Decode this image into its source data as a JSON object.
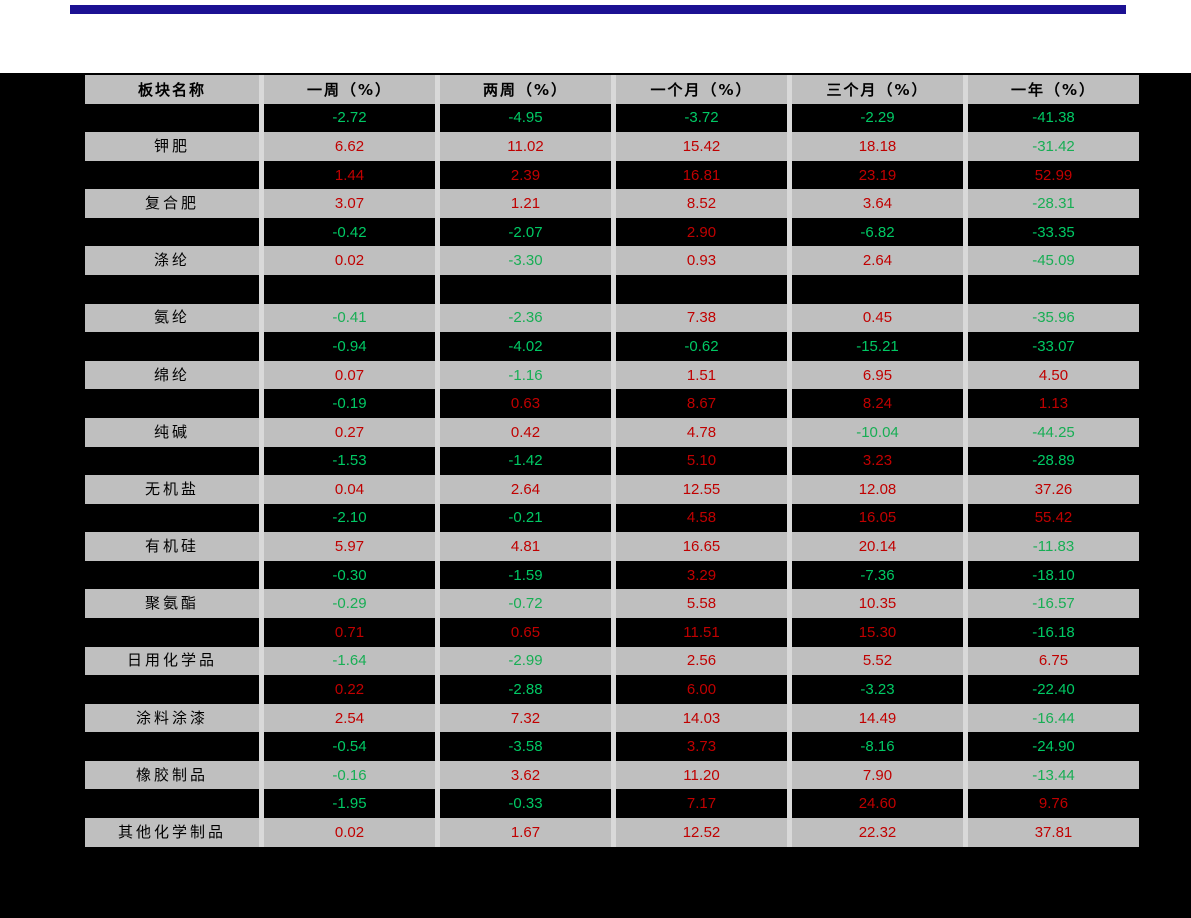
{
  "page": {
    "top_rule_color": "#1c1193",
    "top_band_color": "#ffffff",
    "background_color": "#000000"
  },
  "table": {
    "columns": [
      "板块名称",
      "一周（%）",
      "两周（%）",
      "一个月（%）",
      "三个月（%）",
      "一年（%）"
    ],
    "colors": {
      "header_bg": "#bfbfbf",
      "row_light_bg": "#bfbfbf",
      "row_dark_bg": "#000000",
      "column_gap": "#d9d9d9",
      "positive_value": "#c00000",
      "negative_value": "#17ae54",
      "negative_value_on_dark": "#00c964",
      "header_text": "#000000"
    },
    "rows": [
      {
        "name": "",
        "values": [
          "-2.72",
          "-4.95",
          "-3.72",
          "-2.29",
          "-41.38"
        ]
      },
      {
        "name": "钾肥",
        "values": [
          "6.62",
          "11.02",
          "15.42",
          "18.18",
          "-31.42"
        ]
      },
      {
        "name": "",
        "values": [
          "1.44",
          "2.39",
          "16.81",
          "23.19",
          "52.99"
        ]
      },
      {
        "name": "复合肥",
        "values": [
          "3.07",
          "1.21",
          "8.52",
          "3.64",
          "-28.31"
        ]
      },
      {
        "name": "",
        "values": [
          "-0.42",
          "-2.07",
          "2.90",
          "-6.82",
          "-33.35"
        ]
      },
      {
        "name": "涤纶",
        "values": [
          "0.02",
          "-3.30",
          "0.93",
          "2.64",
          "-45.09"
        ]
      },
      {
        "name": "",
        "values": [
          "",
          "",
          "",
          "",
          ""
        ]
      },
      {
        "name": "氨纶",
        "values": [
          "-0.41",
          "-2.36",
          "7.38",
          "0.45",
          "-35.96"
        ]
      },
      {
        "name": "",
        "values": [
          "-0.94",
          "-4.02",
          "-0.62",
          "-15.21",
          "-33.07"
        ]
      },
      {
        "name": "绵纶",
        "values": [
          "0.07",
          "-1.16",
          "1.51",
          "6.95",
          "4.50"
        ]
      },
      {
        "name": "",
        "values": [
          "-0.19",
          "0.63",
          "8.67",
          "8.24",
          "1.13"
        ]
      },
      {
        "name": "纯碱",
        "values": [
          "0.27",
          "0.42",
          "4.78",
          "-10.04",
          "-44.25"
        ]
      },
      {
        "name": "",
        "values": [
          "-1.53",
          "-1.42",
          "5.10",
          "3.23",
          "-28.89"
        ]
      },
      {
        "name": "无机盐",
        "values": [
          "0.04",
          "2.64",
          "12.55",
          "12.08",
          "37.26"
        ]
      },
      {
        "name": "",
        "values": [
          "-2.10",
          "-0.21",
          "4.58",
          "16.05",
          "55.42"
        ]
      },
      {
        "name": "有机硅",
        "values": [
          "5.97",
          "4.81",
          "16.65",
          "20.14",
          "-11.83"
        ]
      },
      {
        "name": "",
        "values": [
          "-0.30",
          "-1.59",
          "3.29",
          "-7.36",
          "-18.10"
        ]
      },
      {
        "name": "聚氨酯",
        "values": [
          "-0.29",
          "-0.72",
          "5.58",
          "10.35",
          "-16.57"
        ]
      },
      {
        "name": "",
        "values": [
          "0.71",
          "0.65",
          "11.51",
          "15.30",
          "-16.18"
        ]
      },
      {
        "name": "日用化学品",
        "values": [
          "-1.64",
          "-2.99",
          "2.56",
          "5.52",
          "6.75"
        ]
      },
      {
        "name": "",
        "values": [
          "0.22",
          "-2.88",
          "6.00",
          "-3.23",
          "-22.40"
        ]
      },
      {
        "name": "涂料涂漆",
        "values": [
          "2.54",
          "7.32",
          "14.03",
          "14.49",
          "-16.44"
        ]
      },
      {
        "name": "",
        "values": [
          "-0.54",
          "-3.58",
          "3.73",
          "-8.16",
          "-24.90"
        ]
      },
      {
        "name": "橡胶制品",
        "values": [
          "-0.16",
          "3.62",
          "11.20",
          "7.90",
          "-13.44"
        ]
      },
      {
        "name": "",
        "values": [
          "-1.95",
          "-0.33",
          "7.17",
          "24.60",
          "9.76"
        ]
      },
      {
        "name": "其他化学制品",
        "values": [
          "0.02",
          "1.67",
          "12.52",
          "22.32",
          "37.81"
        ]
      }
    ]
  }
}
